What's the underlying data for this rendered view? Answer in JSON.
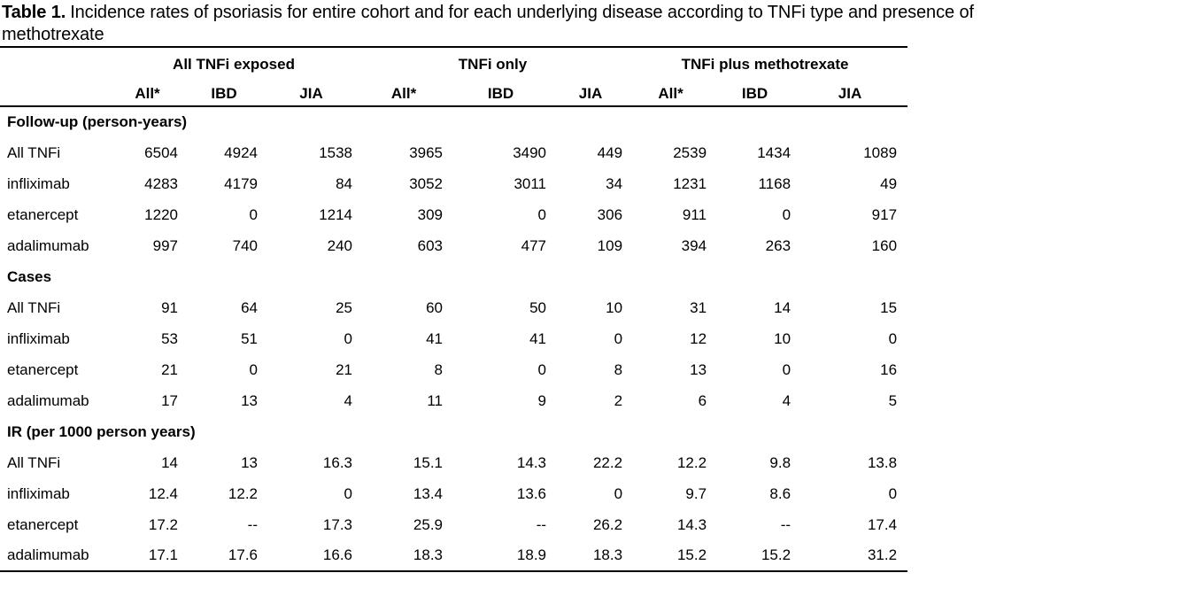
{
  "colors": {
    "text": "#000000",
    "background": "#ffffff",
    "rule": "#000000"
  },
  "title": {
    "prefix": "Table 1.",
    "text": "Incidence rates of psoriasis for entire cohort and for each underlying disease according to TNFi type and presence of",
    "line2": "methotrexate"
  },
  "table": {
    "groups": [
      "All TNFi exposed",
      "TNFi only",
      "TNFi plus methotrexate"
    ],
    "subheaders": [
      "All*",
      "IBD",
      "JIA",
      "All*",
      "IBD",
      "JIA",
      "All*",
      "IBD",
      "JIA"
    ],
    "sections": [
      {
        "header": "Follow-up (person-years)",
        "rows": [
          {
            "label": "All TNFi",
            "values": [
              "6504",
              "4924",
              "1538",
              "3965",
              "3490",
              "449",
              "2539",
              "1434",
              "1089"
            ]
          },
          {
            "label": "infliximab",
            "values": [
              "4283",
              "4179",
              "84",
              "3052",
              "3011",
              "34",
              "1231",
              "1168",
              "49"
            ]
          },
          {
            "label": "etanercept",
            "values": [
              "1220",
              "0",
              "1214",
              "309",
              "0",
              "306",
              "911",
              "0",
              "917"
            ]
          },
          {
            "label": "adalimumab",
            "values": [
              "997",
              "740",
              "240",
              "603",
              "477",
              "109",
              "394",
              "263",
              "160"
            ]
          }
        ]
      },
      {
        "header": "Cases",
        "rows": [
          {
            "label": "All TNFi",
            "values": [
              "91",
              "64",
              "25",
              "60",
              "50",
              "10",
              "31",
              "14",
              "15"
            ]
          },
          {
            "label": "infliximab",
            "values": [
              "53",
              "51",
              "0",
              "41",
              "41",
              "0",
              "12",
              "10",
              "0"
            ]
          },
          {
            "label": "etanercept",
            "values": [
              "21",
              "0",
              "21",
              "8",
              "0",
              "8",
              "13",
              "0",
              "16"
            ]
          },
          {
            "label": "adalimumab",
            "values": [
              "17",
              "13",
              "4",
              "11",
              "9",
              "2",
              "6",
              "4",
              "5"
            ]
          }
        ]
      },
      {
        "header": "IR (per 1000 person years)",
        "rows": [
          {
            "label": "All TNFi",
            "values": [
              "14",
              "13",
              "16.3",
              "15.1",
              "14.3",
              "22.2",
              "12.2",
              "9.8",
              "13.8"
            ]
          },
          {
            "label": "infliximab",
            "values": [
              "12.4",
              "12.2",
              "0",
              "13.4",
              "13.6",
              "0",
              "9.7",
              "8.6",
              "0"
            ]
          },
          {
            "label": "etanercept",
            "values": [
              "17.2",
              "--",
              "17.3",
              "25.9",
              "--",
              "26.2",
              "14.3",
              "--",
              "17.4"
            ]
          },
          {
            "label": "adalimumab",
            "values": [
              "17.1",
              "17.6",
              "16.6",
              "18.3",
              "18.9",
              "18.3",
              "15.2",
              "15.2",
              "31.2"
            ]
          }
        ]
      }
    ]
  }
}
